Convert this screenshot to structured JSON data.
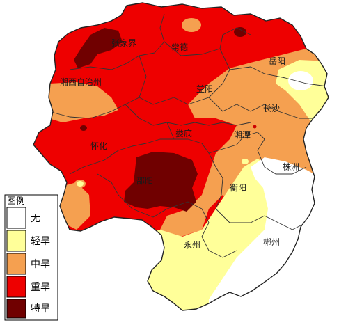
{
  "legend": {
    "title": "图例",
    "items": [
      {
        "label": "无",
        "color": "#ffffff"
      },
      {
        "label": "轻旱",
        "color": "#ffff99"
      },
      {
        "label": "中旱",
        "color": "#f5a050"
      },
      {
        "label": "重旱",
        "color": "#ee0000"
      },
      {
        "label": "特旱",
        "color": "#700000"
      }
    ]
  },
  "cities": [
    {
      "id": "zhangjiajie",
      "label": "张家界"
    },
    {
      "id": "changde",
      "label": "常德"
    },
    {
      "id": "yueyang",
      "label": "岳阳"
    },
    {
      "id": "xiangxi",
      "label": "湘西自治州"
    },
    {
      "id": "yiyang",
      "label": "益阳"
    },
    {
      "id": "changsha",
      "label": "长沙"
    },
    {
      "id": "huaihua",
      "label": "怀化"
    },
    {
      "id": "loudi",
      "label": "娄底"
    },
    {
      "id": "xiangtan",
      "label": "湘潭"
    },
    {
      "id": "zhuzhou",
      "label": "株洲"
    },
    {
      "id": "shaoyang",
      "label": "邵阳"
    },
    {
      "id": "hengyang",
      "label": "衡阳"
    },
    {
      "id": "yongzhou",
      "label": "永州"
    },
    {
      "id": "chenzhou",
      "label": "郴州"
    }
  ]
}
